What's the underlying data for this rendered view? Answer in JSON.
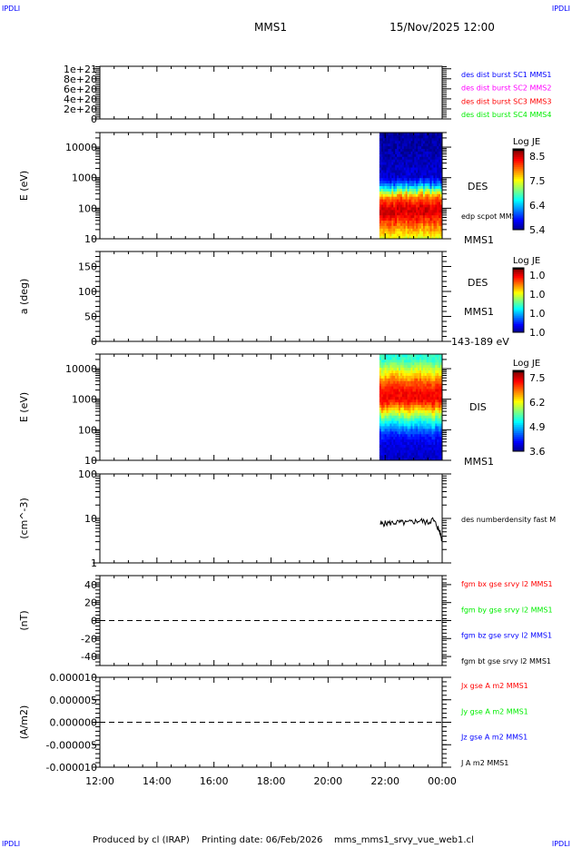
{
  "header": {
    "corner_label": "IPDLI",
    "title": "MMS1",
    "date": "15/Nov/2025 12:00"
  },
  "footer": {
    "produced": "Produced by cl (IRAP)",
    "printing": "Printing date: 06/Feb/2026",
    "file": "mms_mms1_srvy_vue_web1.cl"
  },
  "colors": {
    "red": "#ff0000",
    "green": "#00ee00",
    "blue": "#0000ff",
    "magenta": "#ff00ff",
    "black": "#000000"
  },
  "chart_data": [
    {
      "type": "line",
      "ylim": [
        0,
        1.05e+21
      ],
      "yticks": [
        "0",
        "2e+20",
        "4e+20",
        "6e+20",
        "8e+20",
        "1e+21"
      ],
      "ytick_values": [
        0,
        2e+20,
        4e+20,
        6e+20,
        8e+20,
        1e+21
      ],
      "legend": [
        {
          "name": "des dist burst SC1 MMS1",
          "color": "#0000ff"
        },
        {
          "name": "des dist burst SC2 MMS2",
          "color": "#ff00ff"
        },
        {
          "name": "des dist burst SC3 MMS3",
          "color": "#ff0000"
        },
        {
          "name": "des dist burst SC4 MMS4",
          "color": "#00ee00"
        }
      ],
      "zero_line": true
    },
    {
      "type": "heatmap",
      "ylabel": "E (eV)",
      "yscale": "log",
      "ylim": [
        10,
        30000
      ],
      "yticks": [
        "10",
        "100",
        "1000",
        "10000"
      ],
      "ytick_values": [
        10,
        100,
        1000,
        10000
      ],
      "right_labels": [
        "DES",
        "edp scpot MMS1",
        "MMS1"
      ],
      "colorbar": {
        "title": "Log JE",
        "ticks": [
          "5.4",
          "6.4",
          "7.5",
          "8.5"
        ],
        "range": [
          5.4,
          8.8
        ]
      },
      "data_start": "21:48",
      "data_end": "00:00",
      "profile_energy": [
        10,
        20,
        40,
        70,
        100,
        150,
        250,
        400,
        600,
        1000,
        3000,
        10000,
        30000
      ],
      "profile_logje": [
        7.4,
        7.8,
        8.2,
        8.5,
        8.5,
        8.3,
        7.9,
        7.0,
        6.3,
        5.7,
        5.6,
        5.55,
        5.5
      ]
    },
    {
      "type": "heatmap",
      "ylabel": "a (deg)",
      "ylim": [
        0,
        180
      ],
      "yticks": [
        "0",
        "50",
        "100",
        "150"
      ],
      "ytick_values": [
        0,
        50,
        100,
        150
      ],
      "right_labels": [
        "DES",
        "MMS1",
        "143-189 eV"
      ],
      "colorbar": {
        "title": "Log JE",
        "ticks": [
          "1.0",
          "1.0",
          "1.0",
          "1.0"
        ]
      }
    },
    {
      "type": "heatmap",
      "ylabel": "E (eV)",
      "yscale": "log",
      "ylim": [
        10,
        30000
      ],
      "yticks": [
        "10",
        "100",
        "1000",
        "10000"
      ],
      "ytick_values": [
        10,
        100,
        1000,
        10000
      ],
      "right_labels": [
        "DIS",
        "MMS1"
      ],
      "colorbar": {
        "title": "Log JE",
        "ticks": [
          "3.6",
          "4.9",
          "6.2",
          "7.5"
        ],
        "range": [
          3.6,
          7.9
        ]
      },
      "data_start": "21:48",
      "data_end": "00:00",
      "profile_energy": [
        10,
        30,
        60,
        100,
        200,
        400,
        700,
        1000,
        2000,
        4000,
        8000,
        20000
      ],
      "profile_logje": [
        3.9,
        4.0,
        4.2,
        4.6,
        5.4,
        6.3,
        7.1,
        7.4,
        7.3,
        6.9,
        6.2,
        5.4
      ]
    },
    {
      "type": "line",
      "ylabel": "(cm^-3)",
      "yscale": "log",
      "ylim": [
        1,
        100
      ],
      "yticks": [
        "1",
        "10",
        "100"
      ],
      "ytick_values": [
        1,
        10,
        100
      ],
      "legend": [
        {
          "name": "des numberdensity fast M",
          "color": "#000000"
        }
      ],
      "x": [
        "21:50",
        "22:00",
        "22:15",
        "22:30",
        "22:45",
        "23:00",
        "23:15",
        "23:30",
        "23:40",
        "23:50",
        "23:55",
        "00:00"
      ],
      "y": [
        7.5,
        7.8,
        8.0,
        8.2,
        7.9,
        8.5,
        9.0,
        8.0,
        9.5,
        6.5,
        5.0,
        3.0
      ]
    },
    {
      "type": "line",
      "ylabel": "(nT)",
      "ylim": [
        -50,
        50
      ],
      "yticks": [
        "-40",
        "-20",
        "0",
        "20",
        "40"
      ],
      "ytick_values": [
        -40,
        -20,
        0,
        20,
        40
      ],
      "legend": [
        {
          "name": "fgm bx gse srvy l2 MMS1",
          "color": "#ff0000"
        },
        {
          "name": "fgm by gse srvy l2 MMS1",
          "color": "#00ee00"
        },
        {
          "name": "fgm bz gse srvy l2 MMS1",
          "color": "#0000ff"
        },
        {
          "name": "fgm bt gse srvy l2 MMS1",
          "color": "#000000"
        }
      ],
      "zero_line": true
    },
    {
      "type": "line",
      "ylabel": "(A/m2)",
      "ylim": [
        -1e-05,
        1e-05
      ],
      "yticks": [
        "-0.000010",
        "-0.000005",
        "0.000000",
        "0.000005",
        "0.000010"
      ],
      "ytick_values": [
        -1e-05,
        -5e-06,
        0,
        5e-06,
        1e-05
      ],
      "legend": [
        {
          "name": "Jx gse A m2 MMS1",
          "color": "#ff0000"
        },
        {
          "name": "Jy gse A m2 MMS1",
          "color": "#00ee00"
        },
        {
          "name": "Jz gse A m2 MMS1",
          "color": "#0000ff"
        },
        {
          "name": "J A m2 MMS1",
          "color": "#000000"
        }
      ],
      "zero_line": true
    }
  ],
  "xaxis": {
    "ticks": [
      "12:00",
      "14:00",
      "16:00",
      "18:00",
      "20:00",
      "22:00",
      "00:00"
    ],
    "range": [
      "12:00",
      "00:00"
    ]
  }
}
